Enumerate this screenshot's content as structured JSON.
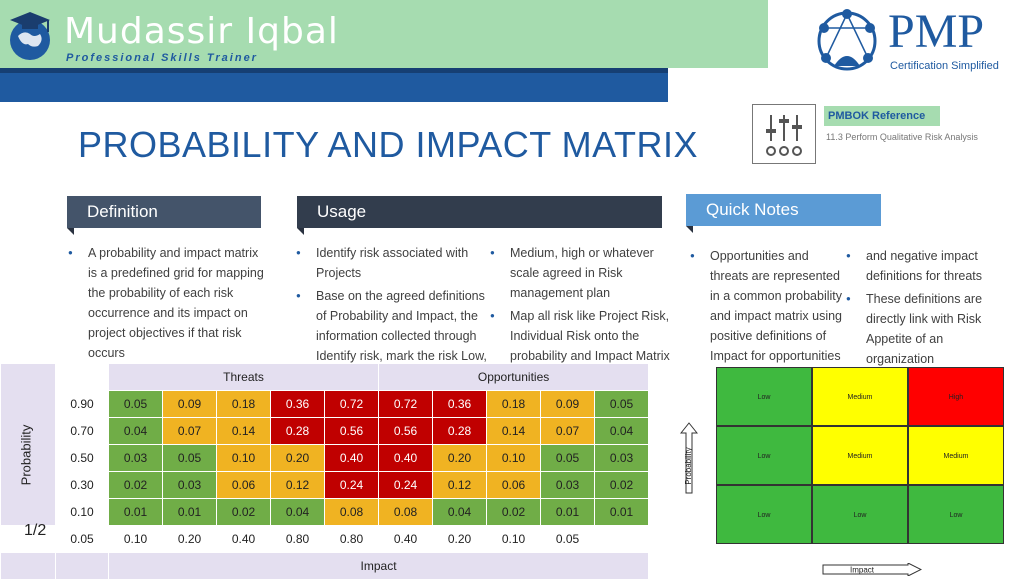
{
  "brand": {
    "name": "Mudassir Iqbal",
    "tagline": "Professional Skills Trainer"
  },
  "logo": {
    "title": "PMP",
    "subtitle": "Certification Simplified"
  },
  "page_title": "PROBABILITY AND IMPACT MATRIX",
  "pmbok": {
    "heading": "PMBOK Reference",
    "subtext": "11.3 Perform Qualitative Risk Analysis"
  },
  "definition": {
    "heading": "Definition",
    "bullets": [
      "A probability and impact matrix is a predefined grid for mapping the probability of each risk occurrence and its impact on project objectives if that risk occurs"
    ]
  },
  "usage": {
    "heading": "Usage",
    "bullets": [
      "Identify risk associated with Projects",
      "Base on the agreed definitions of Probability and Impact, the information collected through Identify risk, mark the risk Low,",
      "Medium, high or whatever scale agreed in Risk management plan",
      "Map all risk like Project Risk, Individual Risk onto the probability and Impact Matrix"
    ]
  },
  "quick_notes": {
    "heading": "Quick Notes",
    "bullets": [
      "Opportunities and threats are represented in a common probability and impact matrix using positive definitions of Impact for opportunities",
      "and negative impact definitions for threats",
      "These definitions are directly link with Risk Appetite of an organization"
    ]
  },
  "matrix": {
    "row_label": "Probability",
    "col_label": "Impact",
    "threats_label": "Threats",
    "opportunities_label": "Opportunities",
    "probabilities": [
      "0.90",
      "0.70",
      "0.50",
      "0.30",
      "0.10"
    ],
    "impacts": [
      "0.05",
      "0.10",
      "0.20",
      "0.40",
      "0.80",
      "0.80",
      "0.40",
      "0.20",
      "0.10",
      "0.05"
    ],
    "rows": [
      [
        "0.05",
        "0.09",
        "0.18",
        "0.36",
        "0.72",
        "0.72",
        "0.36",
        "0.18",
        "0.09",
        "0.05"
      ],
      [
        "0.04",
        "0.07",
        "0.14",
        "0.28",
        "0.56",
        "0.56",
        "0.28",
        "0.14",
        "0.07",
        "0.04"
      ],
      [
        "0.03",
        "0.05",
        "0.10",
        "0.20",
        "0.40",
        "0.40",
        "0.20",
        "0.10",
        "0.05",
        "0.03"
      ],
      [
        "0.02",
        "0.03",
        "0.06",
        "0.12",
        "0.24",
        "0.24",
        "0.12",
        "0.06",
        "0.03",
        "0.02"
      ],
      [
        "0.01",
        "0.01",
        "0.02",
        "0.04",
        "0.08",
        "0.08",
        "0.04",
        "0.02",
        "0.01",
        "0.01"
      ]
    ],
    "colors": [
      [
        "g",
        "y",
        "y",
        "r",
        "r",
        "r",
        "r",
        "y",
        "y",
        "g"
      ],
      [
        "g",
        "y",
        "y",
        "r",
        "r",
        "r",
        "r",
        "y",
        "y",
        "g"
      ],
      [
        "g",
        "g",
        "y",
        "y",
        "r",
        "r",
        "y",
        "y",
        "g",
        "g"
      ],
      [
        "g",
        "g",
        "y",
        "y",
        "r",
        "r",
        "y",
        "y",
        "g",
        "g"
      ],
      [
        "g",
        "g",
        "g",
        "g",
        "y",
        "y",
        "g",
        "g",
        "g",
        "g"
      ]
    ]
  },
  "page_number": "1/2",
  "grid": {
    "cells": [
      [
        "Low",
        "Medium",
        "High"
      ],
      [
        "Low",
        "Medium",
        "Medium"
      ],
      [
        "Low",
        "Low",
        "Low"
      ]
    ],
    "cell_colors": [
      [
        "green",
        "yellow",
        "red"
      ],
      [
        "green",
        "yellow",
        "yellow"
      ],
      [
        "green",
        "green",
        "green"
      ]
    ],
    "y_label": "Probability",
    "x_label": "Impact"
  },
  "colors": {
    "brand_blue": "#1f5aa0",
    "brand_green": "#a6dcb0",
    "threat_red": "#c00000",
    "amber": "#f0b322",
    "green": "#70ad47"
  }
}
